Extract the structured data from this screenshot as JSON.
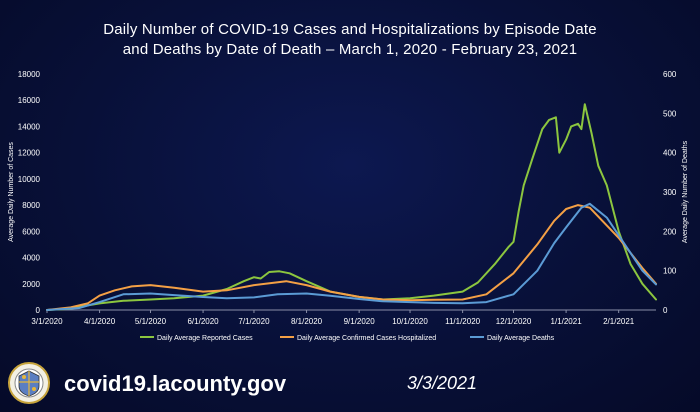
{
  "chart_data": {
    "type": "line",
    "title_line1": "Daily Number of COVID-19 Cases and Hospitalizations by Episode Date",
    "title_line2": "and Deaths by Date of Death – March 1, 2020 - February 23, 2021",
    "ylabel_left": "Average Daily Number of Cases",
    "ylabel_right": "Average Daily Number of Deaths",
    "ylim_left": [
      0,
      18000
    ],
    "ylim_right": [
      0,
      600
    ],
    "yticks_left": [
      "0",
      "2000",
      "4000",
      "6000",
      "8000",
      "10000",
      "12000",
      "14000",
      "16000",
      "18000"
    ],
    "yticks_right": [
      "0",
      "100",
      "200",
      "300",
      "400",
      "500",
      "600"
    ],
    "x_start": "2020-03-01",
    "x_end": "2021-02-23",
    "x_tick_labels": [
      "3/1/2020",
      "4/1/2020",
      "5/1/2020",
      "6/1/2020",
      "7/1/2020",
      "8/1/2020",
      "9/1/2020",
      "10/1/2020",
      "11/1/2020",
      "12/1/2020",
      "1/1/2021",
      "2/1/2021"
    ],
    "x_tick_dates": [
      "2020-03-01",
      "2020-04-01",
      "2020-05-01",
      "2020-06-01",
      "2020-07-01",
      "2020-08-01",
      "2020-09-01",
      "2020-10-01",
      "2020-11-01",
      "2020-12-01",
      "2021-01-01",
      "2021-02-01"
    ],
    "legend_position": "bottom",
    "grid": false,
    "series": [
      {
        "name": "Daily Average Reported Cases",
        "color": "#8cc63f",
        "axis": "left",
        "points": [
          [
            "2020-03-01",
            0
          ],
          [
            "2020-03-15",
            100
          ],
          [
            "2020-03-25",
            350
          ],
          [
            "2020-04-01",
            500
          ],
          [
            "2020-04-15",
            700
          ],
          [
            "2020-05-01",
            800
          ],
          [
            "2020-05-15",
            900
          ],
          [
            "2020-06-01",
            1100
          ],
          [
            "2020-06-15",
            1600
          ],
          [
            "2020-06-25",
            2200
          ],
          [
            "2020-07-01",
            2500
          ],
          [
            "2020-07-05",
            2400
          ],
          [
            "2020-07-10",
            2900
          ],
          [
            "2020-07-16",
            2950
          ],
          [
            "2020-07-22",
            2800
          ],
          [
            "2020-08-01",
            2200
          ],
          [
            "2020-08-15",
            1400
          ],
          [
            "2020-09-01",
            1000
          ],
          [
            "2020-09-15",
            800
          ],
          [
            "2020-10-01",
            900
          ],
          [
            "2020-10-15",
            1100
          ],
          [
            "2020-11-01",
            1400
          ],
          [
            "2020-11-10",
            2100
          ],
          [
            "2020-11-20",
            3500
          ],
          [
            "2020-11-28",
            4800
          ],
          [
            "2020-12-01",
            5200
          ],
          [
            "2020-12-04",
            7500
          ],
          [
            "2020-12-07",
            9500
          ],
          [
            "2020-12-12",
            11500
          ],
          [
            "2020-12-18",
            13800
          ],
          [
            "2020-12-22",
            14500
          ],
          [
            "2020-12-26",
            14700
          ],
          [
            "2020-12-28",
            12000
          ],
          [
            "2021-01-01",
            13000
          ],
          [
            "2021-01-04",
            14000
          ],
          [
            "2021-01-08",
            14200
          ],
          [
            "2021-01-10",
            13800
          ],
          [
            "2021-01-12",
            15700
          ],
          [
            "2021-01-16",
            13500
          ],
          [
            "2021-01-20",
            11000
          ],
          [
            "2021-01-25",
            9500
          ],
          [
            "2021-02-01",
            6000
          ],
          [
            "2021-02-08",
            3500
          ],
          [
            "2021-02-15",
            2000
          ],
          [
            "2021-02-23",
            800
          ]
        ]
      },
      {
        "name": "Daily Average Confirmed Cases Hospitalized",
        "color": "#f4a045",
        "axis": "left",
        "points": [
          [
            "2020-03-01",
            0
          ],
          [
            "2020-03-15",
            200
          ],
          [
            "2020-03-25",
            500
          ],
          [
            "2020-04-01",
            1100
          ],
          [
            "2020-04-10",
            1500
          ],
          [
            "2020-04-20",
            1800
          ],
          [
            "2020-05-01",
            1900
          ],
          [
            "2020-05-15",
            1700
          ],
          [
            "2020-06-01",
            1400
          ],
          [
            "2020-06-15",
            1500
          ],
          [
            "2020-07-01",
            1900
          ],
          [
            "2020-07-20",
            2200
          ],
          [
            "2020-08-01",
            1900
          ],
          [
            "2020-08-15",
            1400
          ],
          [
            "2020-09-01",
            1000
          ],
          [
            "2020-09-15",
            800
          ],
          [
            "2020-10-01",
            750
          ],
          [
            "2020-10-15",
            780
          ],
          [
            "2020-11-01",
            800
          ],
          [
            "2020-11-15",
            1200
          ],
          [
            "2020-12-01",
            2800
          ],
          [
            "2020-12-15",
            5000
          ],
          [
            "2020-12-25",
            6800
          ],
          [
            "2021-01-01",
            7700
          ],
          [
            "2021-01-08",
            8000
          ],
          [
            "2021-01-15",
            7800
          ],
          [
            "2021-02-01",
            5500
          ],
          [
            "2021-02-15",
            3200
          ],
          [
            "2021-02-23",
            2000
          ]
        ]
      },
      {
        "name": "Daily Average Deaths",
        "color": "#5b9bd5",
        "axis": "right",
        "points": [
          [
            "2020-03-01",
            0
          ],
          [
            "2020-03-20",
            5
          ],
          [
            "2020-04-01",
            20
          ],
          [
            "2020-04-15",
            40
          ],
          [
            "2020-05-01",
            42
          ],
          [
            "2020-05-15",
            38
          ],
          [
            "2020-06-01",
            33
          ],
          [
            "2020-06-15",
            30
          ],
          [
            "2020-07-01",
            32
          ],
          [
            "2020-07-15",
            40
          ],
          [
            "2020-08-01",
            42
          ],
          [
            "2020-08-15",
            36
          ],
          [
            "2020-09-01",
            28
          ],
          [
            "2020-09-15",
            22
          ],
          [
            "2020-10-01",
            20
          ],
          [
            "2020-10-15",
            18
          ],
          [
            "2020-11-01",
            17
          ],
          [
            "2020-11-15",
            20
          ],
          [
            "2020-12-01",
            40
          ],
          [
            "2020-12-15",
            100
          ],
          [
            "2020-12-25",
            170
          ],
          [
            "2021-01-01",
            210
          ],
          [
            "2021-01-10",
            260
          ],
          [
            "2021-01-15",
            270
          ],
          [
            "2021-01-25",
            235
          ],
          [
            "2021-02-01",
            190
          ],
          [
            "2021-02-15",
            100
          ],
          [
            "2021-02-23",
            65
          ]
        ]
      }
    ]
  },
  "footer": {
    "url": "covid19.lacounty.gov",
    "date": "3/3/2021"
  }
}
